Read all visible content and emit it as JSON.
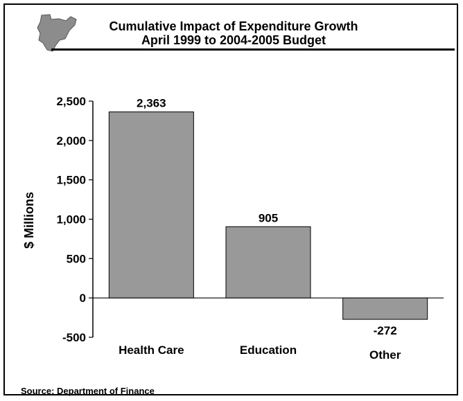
{
  "header": {
    "map_icon": "new-brunswick-map-icon"
  },
  "chart_data": {
    "type": "bar",
    "title": "Cumulative Impact of Expenditure Growth",
    "subtitle": "April 1999 to 2004-2005 Budget",
    "ylabel": "$ Millions",
    "xlabel": "",
    "categories": [
      "Health Care",
      "Education",
      "Other"
    ],
    "values": [
      2363,
      905,
      -272
    ],
    "data_labels": [
      "2,363",
      "905",
      "-272"
    ],
    "ylim": [
      -500,
      2500
    ],
    "yticks": [
      -500,
      0,
      500,
      1000,
      1500,
      2000,
      2500
    ],
    "ytick_labels": [
      "-500",
      "0",
      "500",
      "1,000",
      "1,500",
      "2,000",
      "2,500"
    ],
    "grid": false,
    "bar_color": "#999999"
  },
  "source": "Source: Department of Finance"
}
